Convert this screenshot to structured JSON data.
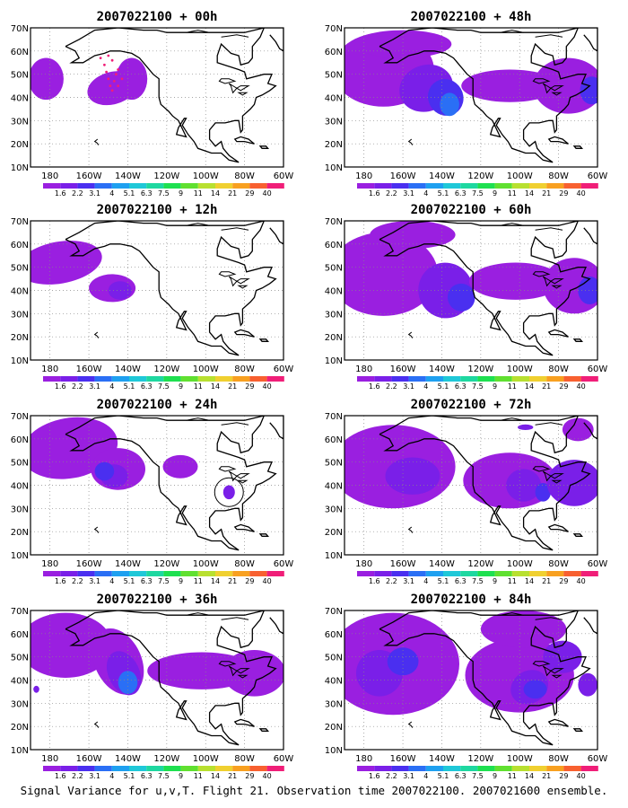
{
  "caption": "Signal Variance for u,v,T. Flight 21. Observation time 2007022100. 2007021600 ensemble.",
  "lat_labels": [
    "70N",
    "60N",
    "50N",
    "40N",
    "30N",
    "20N",
    "10N"
  ],
  "lon_labels": [
    "180",
    "160W",
    "140W",
    "120W",
    "100W",
    "80W",
    "60W"
  ],
  "map_extent": {
    "lon_min": 170,
    "lon_max": 300,
    "lat_min": 10,
    "lat_max": 70
  },
  "colorbar": {
    "labels": [
      "1.6",
      "2.2",
      "3.1",
      "4",
      "5.1",
      "6.3",
      "7.5",
      "9",
      "11",
      "14",
      "21",
      "29",
      "40"
    ],
    "colors": [
      "#9a1fe0",
      "#7a1fe8",
      "#4a2ff0",
      "#2a6ff5",
      "#1ea0f0",
      "#1fc8d8",
      "#1ed8a0",
      "#1ee050",
      "#60e030",
      "#b8e030",
      "#f0d030",
      "#f8a020",
      "#f86030",
      "#f01e78"
    ]
  },
  "panels": [
    {
      "title": "2007022100 + 00h"
    },
    {
      "title": "2007022100 + 48h"
    },
    {
      "title": "2007022100 + 12h"
    },
    {
      "title": "2007022100 + 60h"
    },
    {
      "title": "2007022100 + 24h"
    },
    {
      "title": "2007022100 + 72h"
    },
    {
      "title": "2007022100 + 36h"
    },
    {
      "title": "2007022100 + 84h"
    }
  ]
}
